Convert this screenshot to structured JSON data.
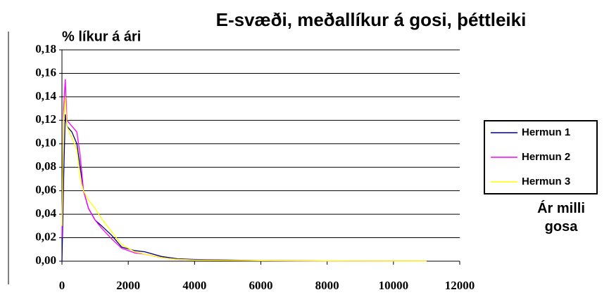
{
  "chart_data": {
    "type": "line",
    "title": "E-svæði, meðallíkur á gosi, þéttleiki",
    "ylabel": "% líkur á ári",
    "xlabel": "Ár milli gosa",
    "x": [
      0,
      50,
      100,
      150,
      300,
      450,
      550,
      650,
      800,
      1000,
      1200,
      1500,
      1800,
      2200,
      2500,
      3000,
      3500,
      4000,
      5000,
      6000,
      8000,
      11000
    ],
    "series": [
      {
        "name": "Hermun 1",
        "color": "#000080",
        "values": [
          0,
          0.07,
          0.125,
          0.115,
          0.11,
          0.1,
          0.08,
          0.06,
          0.045,
          0.035,
          0.03,
          0.022,
          0.012,
          0.009,
          0.008,
          0.004,
          0.002,
          0.0015,
          0.001,
          0.0005,
          0.0002,
          0.0001
        ]
      },
      {
        "name": "Hermun 2",
        "color": "#ff00ff",
        "values": [
          0.02,
          0.13,
          0.155,
          0.12,
          0.115,
          0.11,
          0.09,
          0.06,
          0.045,
          0.035,
          0.028,
          0.019,
          0.011,
          0.007,
          0.006,
          0.003,
          0.0015,
          0.001,
          0.0008,
          0.0004,
          0.0002,
          0.0001
        ]
      },
      {
        "name": "Hermun 3",
        "color": "#ffff00",
        "values": [
          0.03,
          0.12,
          0.14,
          0.115,
          0.105,
          0.095,
          0.07,
          0.06,
          0.052,
          0.045,
          0.036,
          0.025,
          0.014,
          0.008,
          0.006,
          0.003,
          0.0015,
          0.001,
          0.0007,
          0.0004,
          0.0002,
          0.0001
        ]
      }
    ],
    "xlim": [
      0,
      12000
    ],
    "xticks": [
      0,
      2000,
      4000,
      6000,
      8000,
      10000,
      12000
    ],
    "ylim": [
      0,
      0.18
    ],
    "yticks": [
      {
        "value": 0,
        "label": "0,00"
      },
      {
        "value": 0.02,
        "label": "0,02"
      },
      {
        "value": 0.04,
        "label": "0,04"
      },
      {
        "value": 0.06,
        "label": "0,06"
      },
      {
        "value": 0.08,
        "label": "0,08"
      },
      {
        "value": 0.1,
        "label": "0,10"
      },
      {
        "value": 0.12,
        "label": "0,12"
      },
      {
        "value": 0.14,
        "label": "0,14"
      },
      {
        "value": 0.16,
        "label": "0,16"
      },
      {
        "value": 0.18,
        "label": "0,18"
      }
    ],
    "grid": true,
    "legend": "right"
  }
}
